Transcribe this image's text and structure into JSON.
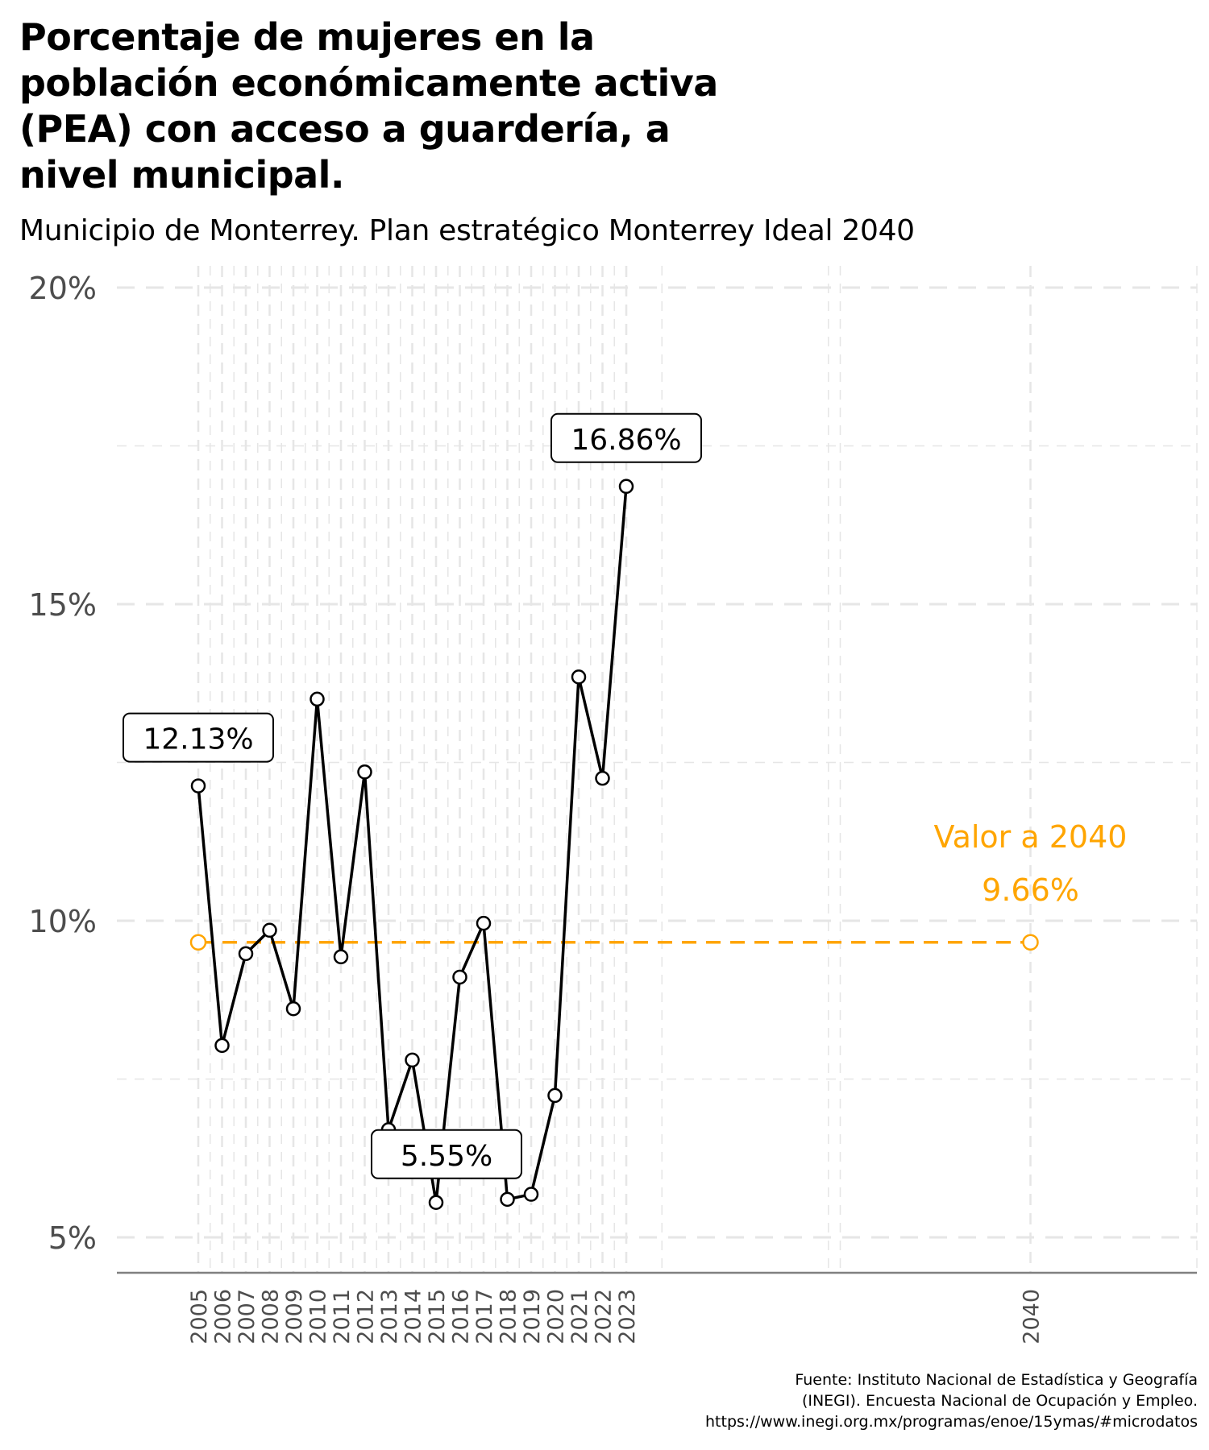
{
  "title_lines": [
    "Porcentaje de mujeres en la",
    "población económicamente activa",
    "(PEA) con acceso a guardería, a",
    "nivel municipal."
  ],
  "subtitle": "Municipio de Monterrey. Plan estratégico Monterrey Ideal 2040",
  "caption_lines": [
    "Fuente: Instituto Nacional de Estadística y Geografía",
    "(INEGI). Encuesta Nacional de Ocupación y Empleo.",
    "https://www.inegi.org.mx/programas/enoe/15ymas/#microdatos"
  ],
  "colors": {
    "series": "#000000",
    "target": "#FFA500",
    "grid": "#e6e6e6",
    "axis": "#808080",
    "tick_text": "#4d4d4d"
  },
  "chart_data": {
    "type": "line",
    "x": [
      2005,
      2006,
      2007,
      2008,
      2009,
      2010,
      2011,
      2012,
      2013,
      2014,
      2015,
      2016,
      2017,
      2018,
      2019,
      2020,
      2021,
      2022,
      2023
    ],
    "series": [
      {
        "values": [
          12.13,
          8.03,
          9.48,
          9.85,
          8.61,
          13.5,
          9.43,
          12.35,
          6.7,
          7.8,
          5.55,
          9.11,
          9.96,
          5.6,
          5.68,
          7.24,
          13.85,
          12.25,
          16.86
        ]
      }
    ],
    "point_labels": [
      {
        "x": 2005,
        "text": "12.13%"
      },
      {
        "x": 2015,
        "text": "5.55%"
      },
      {
        "x": 2023,
        "text": "16.86%"
      }
    ],
    "target": {
      "x": [
        2005,
        2040
      ],
      "value": 9.66,
      "label_line1": "Valor a 2040",
      "label_line2": "9.66%",
      "line_style": "dashed"
    },
    "x_ticks": [
      "2005",
      "2006",
      "2007",
      "2008",
      "2009",
      "2010",
      "2011",
      "2012",
      "2013",
      "2014",
      "2015",
      "2016",
      "2017",
      "2018",
      "2019",
      "2020",
      "2021",
      "2022",
      "2023",
      "2040"
    ],
    "y_ticks": [
      "5%",
      "10%",
      "15%",
      "20%"
    ],
    "y_tick_values": [
      5,
      10,
      15,
      20
    ],
    "xlim": [
      2004,
      2047
    ],
    "ylim": [
      4.5,
      20
    ],
    "grid": true,
    "legend": "none",
    "xlabel": "",
    "ylabel": ""
  }
}
